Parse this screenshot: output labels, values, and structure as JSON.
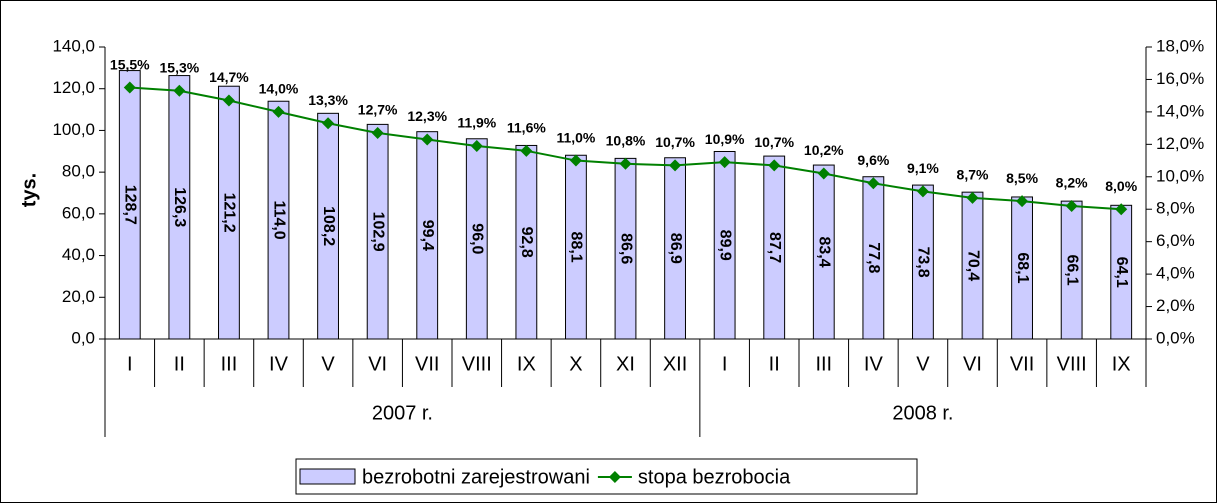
{
  "chart_data": {
    "type": "bar-line",
    "y_axis_label": "tys.",
    "categories": [
      "I",
      "II",
      "III",
      "IV",
      "V",
      "VI",
      "VII",
      "VIII",
      "IX",
      "X",
      "XI",
      "XII",
      "I",
      "II",
      "III",
      "IV",
      "V",
      "VI",
      "VII",
      "VIII",
      "IX"
    ],
    "group_labels": [
      "2007 r.",
      "2008 r."
    ],
    "series": [
      {
        "name": "bezrobotni zarejestrowani",
        "type": "bar",
        "color": "#ccccff",
        "values": [
          128.7,
          126.3,
          121.2,
          114.0,
          108.2,
          102.9,
          99.4,
          96.0,
          92.8,
          88.1,
          86.6,
          86.9,
          89.9,
          87.7,
          83.4,
          77.8,
          73.8,
          70.4,
          68.1,
          66.1,
          64.1
        ],
        "value_labels": [
          "128,7",
          "126,3",
          "121,2",
          "114,0",
          "108,2",
          "102,9",
          "99,4",
          "96,0",
          "92,8",
          "88,1",
          "86,6",
          "86,9",
          "89,9",
          "87,7",
          "83,4",
          "77,8",
          "73,8",
          "70,4",
          "68,1",
          "66,1",
          "64,1"
        ]
      },
      {
        "name": "stopa bezrobocia",
        "type": "line",
        "axis": "y2",
        "color": "#008000",
        "values": [
          15.5,
          15.3,
          14.7,
          14.0,
          13.3,
          12.7,
          12.3,
          11.9,
          11.6,
          11.0,
          10.8,
          10.7,
          10.9,
          10.7,
          10.2,
          9.6,
          9.1,
          8.7,
          8.5,
          8.2,
          8.0
        ],
        "value_labels": [
          "15,5%",
          "15,3%",
          "14,7%",
          "14,0%",
          "13,3%",
          "12,7%",
          "12,3%",
          "11,9%",
          "11,6%",
          "11,0%",
          "10,8%",
          "10,7%",
          "10,9%",
          "10,7%",
          "10,2%",
          "9,6%",
          "9,1%",
          "8,7%",
          "8,5%",
          "8,2%",
          "8,0%"
        ]
      }
    ],
    "ylim": [
      0,
      140
    ],
    "yticks": [
      {
        "value": 0,
        "label": "0,0"
      },
      {
        "value": 20,
        "label": "20,0"
      },
      {
        "value": 40,
        "label": "40,0"
      },
      {
        "value": 60,
        "label": "60,0"
      },
      {
        "value": 80,
        "label": "80,0"
      },
      {
        "value": 100,
        "label": "100,0"
      },
      {
        "value": 120,
        "label": "120,0"
      },
      {
        "value": 140,
        "label": "140,0"
      }
    ],
    "y2lim": [
      0,
      18
    ],
    "y2ticks": [
      {
        "value": 0,
        "label": "0,0%"
      },
      {
        "value": 2,
        "label": "2,0%"
      },
      {
        "value": 4,
        "label": "4,0%"
      },
      {
        "value": 6,
        "label": "6,0%"
      },
      {
        "value": 8,
        "label": "8,0%"
      },
      {
        "value": 10,
        "label": "10,0%"
      },
      {
        "value": 12,
        "label": "12,0%"
      },
      {
        "value": 14,
        "label": "14,0%"
      },
      {
        "value": 16,
        "label": "16,0%"
      },
      {
        "value": 18,
        "label": "18,0%"
      }
    ],
    "legend": "bottom"
  }
}
